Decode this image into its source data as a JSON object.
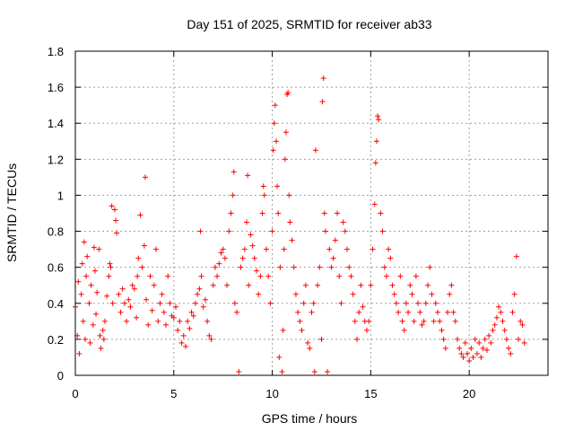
{
  "chart_data": {
    "type": "scatter",
    "title": "Day 151 of 2025, SRMTID for receiver ab33",
    "xlabel": "GPS time / hours",
    "ylabel": "SRMTID / TECUs",
    "xlim": [
      0,
      24
    ],
    "ylim": [
      0,
      1.8
    ],
    "xticks": [
      0,
      5,
      10,
      15,
      20
    ],
    "xtick_labels": [
      "0",
      "5",
      "10",
      "15",
      "20"
    ],
    "yticks": [
      0,
      0.2,
      0.4,
      0.6,
      0.8,
      1.0,
      1.2,
      1.4,
      1.6,
      1.8
    ],
    "ytick_labels": [
      "0",
      "0.2",
      "0.4",
      "0.6",
      "0.8",
      "1",
      "1.2",
      "1.4",
      "1.6",
      "1.8"
    ],
    "grid": true,
    "marker": "+",
    "marker_color": "#ff0000",
    "series": [
      {
        "name": "SRMTID",
        "points": [
          [
            0.0,
            0.38
          ],
          [
            0.1,
            0.22
          ],
          [
            0.15,
            0.52
          ],
          [
            0.2,
            0.12
          ],
          [
            0.3,
            0.45
          ],
          [
            0.35,
            0.62
          ],
          [
            0.4,
            0.3
          ],
          [
            0.45,
            0.74
          ],
          [
            0.5,
            0.2
          ],
          [
            0.55,
            0.55
          ],
          [
            0.6,
            0.66
          ],
          [
            0.7,
            0.4
          ],
          [
            0.75,
            0.18
          ],
          [
            0.8,
            0.5
          ],
          [
            0.9,
            0.28
          ],
          [
            0.95,
            0.71
          ],
          [
            1.0,
            0.58
          ],
          [
            1.05,
            0.34
          ],
          [
            1.1,
            0.46
          ],
          [
            1.2,
            0.7
          ],
          [
            1.25,
            0.22
          ],
          [
            1.3,
            0.15
          ],
          [
            1.4,
            0.25
          ],
          [
            1.45,
            0.2
          ],
          [
            1.5,
            0.3
          ],
          [
            1.6,
            0.44
          ],
          [
            1.7,
            0.55
          ],
          [
            1.75,
            0.62
          ],
          [
            1.8,
            0.6
          ],
          [
            1.85,
            0.94
          ],
          [
            1.9,
            0.4
          ],
          [
            2.0,
            0.92
          ],
          [
            2.05,
            0.86
          ],
          [
            2.1,
            0.79
          ],
          [
            2.2,
            0.45
          ],
          [
            2.3,
            0.35
          ],
          [
            2.4,
            0.48
          ],
          [
            2.5,
            0.4
          ],
          [
            2.6,
            0.3
          ],
          [
            2.7,
            0.42
          ],
          [
            2.8,
            0.38
          ],
          [
            2.9,
            0.5
          ],
          [
            3.0,
            0.48
          ],
          [
            3.1,
            0.32
          ],
          [
            3.15,
            0.55
          ],
          [
            3.2,
            0.65
          ],
          [
            3.3,
            0.89
          ],
          [
            3.4,
            0.6
          ],
          [
            3.5,
            0.72
          ],
          [
            3.55,
            1.1
          ],
          [
            3.6,
            0.42
          ],
          [
            3.7,
            0.28
          ],
          [
            3.8,
            0.55
          ],
          [
            3.9,
            0.36
          ],
          [
            4.0,
            0.5
          ],
          [
            4.1,
            0.7
          ],
          [
            4.2,
            0.3
          ],
          [
            4.3,
            0.4
          ],
          [
            4.4,
            0.45
          ],
          [
            4.5,
            0.35
          ],
          [
            4.6,
            0.28
          ],
          [
            4.7,
            0.55
          ],
          [
            4.8,
            0.4
          ],
          [
            4.9,
            0.33
          ],
          [
            5.0,
            0.32
          ],
          [
            5.1,
            0.38
          ],
          [
            5.2,
            0.25
          ],
          [
            5.3,
            0.3
          ],
          [
            5.4,
            0.18
          ],
          [
            5.5,
            0.22
          ],
          [
            5.6,
            0.16
          ],
          [
            5.7,
            0.3
          ],
          [
            5.8,
            0.26
          ],
          [
            5.9,
            0.35
          ],
          [
            6.0,
            0.33
          ],
          [
            6.1,
            0.4
          ],
          [
            6.2,
            0.45
          ],
          [
            6.3,
            0.48
          ],
          [
            6.35,
            0.8
          ],
          [
            6.4,
            0.55
          ],
          [
            6.5,
            0.38
          ],
          [
            6.6,
            0.42
          ],
          [
            6.7,
            0.3
          ],
          [
            6.8,
            0.22
          ],
          [
            6.9,
            0.2
          ],
          [
            7.0,
            0.5
          ],
          [
            7.1,
            0.6
          ],
          [
            7.2,
            0.55
          ],
          [
            7.3,
            0.62
          ],
          [
            7.4,
            0.68
          ],
          [
            7.5,
            0.7
          ],
          [
            7.6,
            0.65
          ],
          [
            7.7,
            0.5
          ],
          [
            7.8,
            0.8
          ],
          [
            7.9,
            0.9
          ],
          [
            8.0,
            1.0
          ],
          [
            8.05,
            1.13
          ],
          [
            8.1,
            0.4
          ],
          [
            8.2,
            0.35
          ],
          [
            8.3,
            0.02
          ],
          [
            8.4,
            0.6
          ],
          [
            8.5,
            0.65
          ],
          [
            8.6,
            0.7
          ],
          [
            8.7,
            0.85
          ],
          [
            8.75,
            1.11
          ],
          [
            8.8,
            0.5
          ],
          [
            8.9,
            0.78
          ],
          [
            9.0,
            0.72
          ],
          [
            9.1,
            0.65
          ],
          [
            9.2,
            0.58
          ],
          [
            9.3,
            0.45
          ],
          [
            9.4,
            0.55
          ],
          [
            9.5,
            0.9
          ],
          [
            9.55,
            1.05
          ],
          [
            9.6,
            1.0
          ],
          [
            9.7,
            0.7
          ],
          [
            9.8,
            0.55
          ],
          [
            9.9,
            0.4
          ],
          [
            10.0,
            0.8
          ],
          [
            10.05,
            1.25
          ],
          [
            10.1,
            1.4
          ],
          [
            10.15,
            1.5
          ],
          [
            10.2,
            1.3
          ],
          [
            10.25,
            1.05
          ],
          [
            10.3,
            0.9
          ],
          [
            10.35,
            0.1
          ],
          [
            10.4,
            0.6
          ],
          [
            10.5,
            0.02
          ],
          [
            10.55,
            0.25
          ],
          [
            10.6,
            0.7
          ],
          [
            10.65,
            1.2
          ],
          [
            10.7,
            1.35
          ],
          [
            10.75,
            1.56
          ],
          [
            10.8,
            1.57
          ],
          [
            10.85,
            1.0
          ],
          [
            10.9,
            0.85
          ],
          [
            11.0,
            0.75
          ],
          [
            11.1,
            0.6
          ],
          [
            11.2,
            0.45
          ],
          [
            11.3,
            0.35
          ],
          [
            11.4,
            0.3
          ],
          [
            11.5,
            0.25
          ],
          [
            11.6,
            0.4
          ],
          [
            11.7,
            0.5
          ],
          [
            11.8,
            0.18
          ],
          [
            11.9,
            0.15
          ],
          [
            12.0,
            0.35
          ],
          [
            12.1,
            0.4
          ],
          [
            12.15,
            0.02
          ],
          [
            12.2,
            1.25
          ],
          [
            12.3,
            0.5
          ],
          [
            12.4,
            0.6
          ],
          [
            12.5,
            0.2
          ],
          [
            12.55,
            1.52
          ],
          [
            12.6,
            1.65
          ],
          [
            12.65,
            0.9
          ],
          [
            12.7,
            0.8
          ],
          [
            12.8,
            0.02
          ],
          [
            12.9,
            0.7
          ],
          [
            13.0,
            0.6
          ],
          [
            13.1,
            0.65
          ],
          [
            13.2,
            0.75
          ],
          [
            13.3,
            0.9
          ],
          [
            13.4,
            0.55
          ],
          [
            13.5,
            0.4
          ],
          [
            13.6,
            0.85
          ],
          [
            13.7,
            0.8
          ],
          [
            13.8,
            0.7
          ],
          [
            13.9,
            0.6
          ],
          [
            14.0,
            0.55
          ],
          [
            14.1,
            0.45
          ],
          [
            14.2,
            0.3
          ],
          [
            14.3,
            0.2
          ],
          [
            14.4,
            0.35
          ],
          [
            14.5,
            0.5
          ],
          [
            14.6,
            0.38
          ],
          [
            14.7,
            0.3
          ],
          [
            14.8,
            0.25
          ],
          [
            14.9,
            0.3
          ],
          [
            15.0,
            0.5
          ],
          [
            15.1,
            0.7
          ],
          [
            15.2,
            0.95
          ],
          [
            15.25,
            1.18
          ],
          [
            15.3,
            1.3
          ],
          [
            15.35,
            1.44
          ],
          [
            15.4,
            1.42
          ],
          [
            15.5,
            0.9
          ],
          [
            15.6,
            0.8
          ],
          [
            15.7,
            0.6
          ],
          [
            15.8,
            0.55
          ],
          [
            15.9,
            0.7
          ],
          [
            16.0,
            0.65
          ],
          [
            16.1,
            0.5
          ],
          [
            16.2,
            0.45
          ],
          [
            16.3,
            0.4
          ],
          [
            16.4,
            0.35
          ],
          [
            16.5,
            0.55
          ],
          [
            16.6,
            0.3
          ],
          [
            16.7,
            0.25
          ],
          [
            16.8,
            0.4
          ],
          [
            16.9,
            0.35
          ],
          [
            17.0,
            0.5
          ],
          [
            17.1,
            0.45
          ],
          [
            17.2,
            0.3
          ],
          [
            17.3,
            0.55
          ],
          [
            17.4,
            0.4
          ],
          [
            17.5,
            0.35
          ],
          [
            17.6,
            0.28
          ],
          [
            17.7,
            0.3
          ],
          [
            17.8,
            0.4
          ],
          [
            17.9,
            0.5
          ],
          [
            18.0,
            0.6
          ],
          [
            18.1,
            0.45
          ],
          [
            18.2,
            0.3
          ],
          [
            18.3,
            0.4
          ],
          [
            18.4,
            0.35
          ],
          [
            18.5,
            0.3
          ],
          [
            18.6,
            0.25
          ],
          [
            18.7,
            0.2
          ],
          [
            18.8,
            0.15
          ],
          [
            18.9,
            0.35
          ],
          [
            19.0,
            0.45
          ],
          [
            19.1,
            0.5
          ],
          [
            19.2,
            0.35
          ],
          [
            19.3,
            0.3
          ],
          [
            19.4,
            0.2
          ],
          [
            19.5,
            0.15
          ],
          [
            19.6,
            0.12
          ],
          [
            19.7,
            0.1
          ],
          [
            19.8,
            0.18
          ],
          [
            19.9,
            0.12
          ],
          [
            20.0,
            0.08
          ],
          [
            20.1,
            0.15
          ],
          [
            20.2,
            0.1
          ],
          [
            20.3,
            0.2
          ],
          [
            20.4,
            0.12
          ],
          [
            20.5,
            0.18
          ],
          [
            20.6,
            0.1
          ],
          [
            20.7,
            0.15
          ],
          [
            20.8,
            0.2
          ],
          [
            20.9,
            0.14
          ],
          [
            21.0,
            0.22
          ],
          [
            21.1,
            0.18
          ],
          [
            21.2,
            0.25
          ],
          [
            21.3,
            0.28
          ],
          [
            21.4,
            0.32
          ],
          [
            21.5,
            0.38
          ],
          [
            21.6,
            0.35
          ],
          [
            21.7,
            0.3
          ],
          [
            21.8,
            0.25
          ],
          [
            21.9,
            0.2
          ],
          [
            22.0,
            0.15
          ],
          [
            22.1,
            0.12
          ],
          [
            22.2,
            0.35
          ],
          [
            22.3,
            0.45
          ],
          [
            22.4,
            0.66
          ],
          [
            22.5,
            0.2
          ],
          [
            22.6,
            0.3
          ],
          [
            22.7,
            0.28
          ],
          [
            22.8,
            0.18
          ]
        ]
      }
    ]
  }
}
